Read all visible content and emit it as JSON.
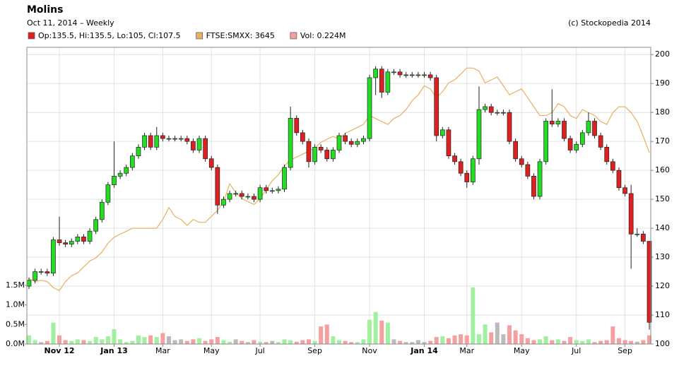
{
  "chart_data": {
    "type": "candlestick",
    "title": "Molins",
    "subtitle": "Oct 11, 2014 – Weekly",
    "credit": "(c) Stockopedia 2014",
    "categories": [
      null,
      null,
      null,
      null,
      null,
      "Nov 12",
      null,
      null,
      null,
      null,
      null,
      null,
      null,
      null,
      "Jan 13",
      null,
      null,
      null,
      null,
      null,
      null,
      null,
      "Mar",
      null,
      null,
      null,
      null,
      null,
      null,
      null,
      "May",
      null,
      null,
      null,
      null,
      null,
      null,
      null,
      "Jul",
      null,
      null,
      null,
      null,
      null,
      null,
      null,
      null,
      "Sep",
      null,
      null,
      null,
      null,
      null,
      null,
      null,
      null,
      "Nov",
      null,
      null,
      null,
      null,
      null,
      null,
      null,
      null,
      "Jan 14",
      null,
      null,
      null,
      null,
      null,
      null,
      "Mar",
      null,
      null,
      null,
      null,
      null,
      null,
      null,
      null,
      "May",
      null,
      null,
      null,
      null,
      null,
      null,
      null,
      null,
      "Jul",
      null,
      null,
      null,
      null,
      null,
      null,
      null,
      "Sep",
      null,
      null,
      null,
      null
    ],
    "ylim": [
      100,
      202.5
    ],
    "yticks": [
      100,
      110,
      120,
      130,
      140,
      150,
      160,
      170,
      180,
      190,
      200
    ],
    "y2lim": [
      2000,
      4550
    ],
    "y3lim": [
      0,
      1.5
    ],
    "y3ticks": [
      {
        "value": 0,
        "label": "0.0M"
      },
      {
        "value": 0.5,
        "label": "0.5M"
      },
      {
        "value": 1,
        "label": "1.0M"
      },
      {
        "value": 1.5,
        "label": "1.5M"
      }
    ],
    "grid": true,
    "series": [
      {
        "name": "Op:135.5, Hi:135.5, Lo:105, Cl:107.5",
        "color": "#dd2020",
        "up_color": "#22dd22",
        "open": [
          120,
          122,
          125,
          125,
          124.5,
          136,
          135,
          134.5,
          135.5,
          137,
          135.5,
          139,
          143,
          149,
          155,
          158,
          159,
          161,
          165,
          168,
          172,
          168,
          172,
          171,
          171,
          171,
          171,
          170,
          167,
          171,
          164,
          161,
          148,
          150,
          152,
          152,
          151,
          151,
          150,
          154,
          153,
          153,
          153.5,
          161,
          178,
          173,
          170,
          163,
          168,
          167,
          164,
          167,
          172,
          170,
          169,
          170,
          171,
          192,
          195,
          187,
          194,
          194,
          193,
          193,
          193,
          193,
          193,
          192,
          172,
          174,
          165,
          163,
          159,
          156,
          164,
          181,
          182,
          180,
          180,
          180,
          170,
          164,
          162,
          158,
          151,
          163,
          177,
          176,
          177,
          171,
          167,
          169,
          173,
          177,
          172,
          168,
          163,
          160,
          154,
          152,
          138,
          138,
          135.5
        ],
        "high": [
          123,
          126,
          126,
          126,
          137,
          144,
          136,
          136.5,
          138,
          138,
          140,
          144,
          150,
          156,
          170,
          160,
          162,
          166,
          169,
          173,
          173,
          175,
          173,
          172,
          172,
          172,
          172,
          171,
          172,
          172,
          165,
          162,
          151,
          153,
          153,
          153,
          152,
          152,
          155,
          155,
          154,
          154.5,
          162,
          182,
          179,
          174,
          171,
          169,
          169,
          168,
          168,
          173,
          173,
          171,
          171,
          172,
          193,
          196,
          196,
          195,
          195,
          195,
          194,
          194,
          194,
          194,
          194,
          193,
          175,
          175,
          166,
          164,
          160,
          165,
          189,
          183,
          183,
          181,
          181,
          181,
          171,
          165,
          163,
          159,
          164,
          178,
          188,
          178,
          178,
          172,
          170,
          174,
          180,
          178,
          173,
          169,
          164,
          161,
          155,
          155,
          140,
          139,
          135.5
        ],
        "low": [
          119,
          121,
          124,
          123.5,
          123.5,
          134,
          133.5,
          133.5,
          134.5,
          134.5,
          134.5,
          138,
          142,
          148,
          154,
          157,
          158,
          160,
          164,
          167,
          167,
          167,
          170,
          170,
          170,
          170,
          169,
          166,
          166,
          163,
          160,
          145,
          147,
          149,
          151,
          150,
          150,
          149,
          149,
          152,
          152,
          152,
          152.5,
          160,
          172,
          169,
          161,
          162,
          166,
          163,
          163,
          166,
          169,
          168,
          168,
          169,
          170,
          186,
          185,
          186,
          193,
          192,
          192,
          192,
          192,
          192,
          191,
          170,
          171,
          164,
          162,
          158,
          154,
          155,
          162,
          180,
          179,
          179,
          179,
          169,
          163,
          161,
          157,
          150,
          150,
          162,
          175,
          175,
          170,
          166,
          166,
          168,
          172,
          171,
          167,
          162,
          159,
          153,
          151,
          126,
          137,
          134.5,
          105
        ],
        "close": [
          122,
          125,
          125,
          124.5,
          136,
          135,
          134.5,
          135.5,
          137,
          135.5,
          139,
          143,
          149,
          155,
          158,
          159,
          161,
          165,
          168,
          172,
          168,
          172,
          171,
          171,
          171,
          171,
          170,
          167,
          171,
          164,
          161,
          148,
          150,
          152,
          152,
          151,
          151,
          150,
          154,
          153,
          153,
          153.5,
          161,
          178,
          173,
          170,
          163,
          168,
          167,
          164,
          167,
          172,
          170,
          169,
          170,
          171,
          192,
          195,
          187,
          194,
          194,
          193,
          193,
          193,
          193,
          193,
          192,
          172,
          174,
          165,
          163,
          159,
          156,
          164,
          181,
          182,
          180,
          180,
          180,
          170,
          164,
          162,
          158,
          151,
          163,
          177,
          176,
          177,
          171,
          167,
          169,
          173,
          177,
          172,
          168,
          163,
          160,
          154,
          152,
          138,
          138,
          135.5,
          107.5
        ]
      },
      {
        "name": "FTSE:SMXX: 3645",
        "color": "#e8b060",
        "axis": "y2",
        "values": [
          2561,
          2536,
          2548,
          2536,
          2485,
          2459,
          2536,
          2587,
          2612,
          2663,
          2714,
          2740,
          2791,
          2867,
          2918,
          2944,
          2969,
          2995,
          2995,
          2995,
          2995,
          2995,
          3071,
          3173,
          3097,
          3071,
          3020,
          3071,
          3046,
          3046,
          3097,
          3148,
          3224,
          3377,
          3301,
          3250,
          3224,
          3199,
          3250,
          3326,
          3403,
          3454,
          3530,
          3581,
          3607,
          3632,
          3658,
          3683,
          3734,
          3760,
          3785,
          3760,
          3811,
          3836,
          3862,
          3887,
          3964,
          3938,
          3913,
          3887,
          3938,
          3964,
          4015,
          4091,
          4142,
          4219,
          4193,
          4117,
          4168,
          4244,
          4270,
          4321,
          4372,
          4372,
          4346,
          4244,
          4270,
          4295,
          4219,
          4142,
          4168,
          4193,
          4117,
          4040,
          3964,
          3964,
          3989,
          4066,
          4040,
          3964,
          3938,
          4015,
          3989,
          3964,
          3913,
          3887,
          3989,
          4040,
          4040,
          3989,
          3913,
          3785,
          3645
        ]
      },
      {
        "name": "Vol: 0.224M",
        "color": "#f4a0a0",
        "up_color": "#a0f0a0",
        "flat_color": "#bbbbbb",
        "axis": "y3",
        "values": [
          0.22,
          0.1,
          0.05,
          0.08,
          0.55,
          0.22,
          0.1,
          0.08,
          0.12,
          0.1,
          0.08,
          0.18,
          0.12,
          0.2,
          0.38,
          0.12,
          0.05,
          0.08,
          0.22,
          0.18,
          0.22,
          0.18,
          0.28,
          0.2,
          0.1,
          0.12,
          0.08,
          0.12,
          0.15,
          0.08,
          0.12,
          0.18,
          0.1,
          0.06,
          0.12,
          0.08,
          0.05,
          0.1,
          0.06,
          0.05,
          0.08,
          0.05,
          0.12,
          0.1,
          0.06,
          0.1,
          0.12,
          0.08,
          0.45,
          0.5,
          0.2,
          0.1,
          0.08,
          0.05,
          0.05,
          0.12,
          0.62,
          0.82,
          0.6,
          0.55,
          0.12,
          0.08,
          0.05,
          0.05,
          0.1,
          0.05,
          0.08,
          0.18,
          0.2,
          0.15,
          0.22,
          0.25,
          0.22,
          1.45,
          0.25,
          0.5,
          0.3,
          0.55,
          0.25,
          0.48,
          0.35,
          0.25,
          0.15,
          0.1,
          0.12,
          0.2,
          0.1,
          0.12,
          0.08,
          0.18,
          0.1,
          0.08,
          0.12,
          0.05,
          0.08,
          0.1,
          0.45,
          0.15,
          0.1,
          0.08,
          0.06,
          0.1,
          0.224
        ]
      }
    ]
  }
}
